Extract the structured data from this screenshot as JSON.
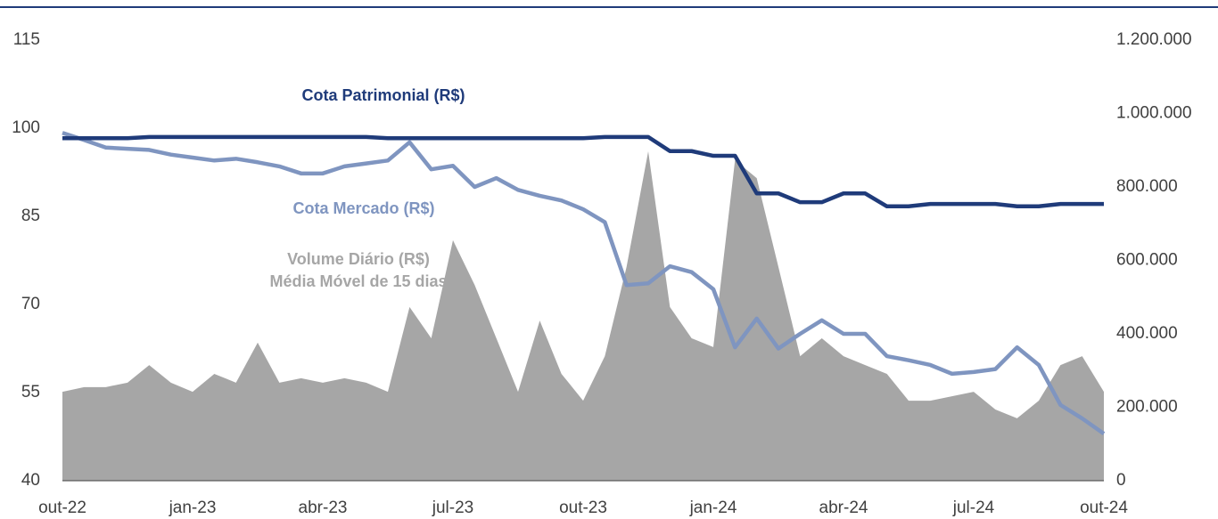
{
  "chart_data": {
    "type": "line",
    "categories": [
      "out-22",
      null,
      null,
      null,
      null,
      null,
      "jan-23",
      null,
      null,
      null,
      null,
      null,
      "abr-23",
      null,
      null,
      null,
      null,
      null,
      "jul-23",
      null,
      null,
      null,
      null,
      null,
      "out-23",
      null,
      null,
      null,
      null,
      null,
      "jan-24",
      null,
      null,
      null,
      null,
      null,
      "abr-24",
      null,
      null,
      null,
      null,
      null,
      "jul-24",
      null,
      null,
      null,
      null,
      null,
      "out-24"
    ],
    "series": [
      {
        "name": "Volume Diário (R$)",
        "type": "area",
        "axis": "y2",
        "color": "#a6a6a6",
        "values": [
          242000,
          255000,
          255000,
          267000,
          315000,
          267000,
          242000,
          291000,
          267000,
          376000,
          267000,
          279000,
          267000,
          279000,
          267000,
          242000,
          473000,
          388000,
          655000,
          533000,
          388000,
          242000,
          436000,
          291000,
          218000,
          339000,
          582000,
          897000,
          473000,
          388000,
          364000,
          873000,
          824000,
          582000,
          339000,
          388000,
          339000,
          315000,
          291000,
          218000,
          218000,
          230000,
          242000,
          194000,
          170000,
          218000,
          315000,
          339000,
          242000
        ]
      },
      {
        "name": "Cota Mercado (R$)",
        "type": "line",
        "color": "#7f95c0",
        "values": [
          99.2,
          98,
          96.7,
          96.5,
          96.3,
          95.5,
          95,
          94.5,
          94.8,
          94.2,
          93.5,
          92.3,
          92.3,
          93.5,
          94,
          94.5,
          97.6,
          93,
          93.6,
          90,
          91.5,
          89.5,
          88.5,
          87.7,
          86.2,
          84,
          73.3,
          73.6,
          76.5,
          75.5,
          72.6,
          62.7,
          67.6,
          62.5,
          65,
          67.3,
          65,
          65,
          61.2,
          60.5,
          59.7,
          58.2,
          58.5,
          59,
          62.7,
          59.7,
          52.9,
          50.6,
          48
        ]
      },
      {
        "name": "Cota Patrimonial (R$)",
        "type": "line",
        "color": "#1f3b7a",
        "values": [
          98.3,
          98.3,
          98.3,
          98.3,
          98.5,
          98.5,
          98.5,
          98.5,
          98.5,
          98.5,
          98.5,
          98.5,
          98.5,
          98.5,
          98.5,
          98.3,
          98.3,
          98.3,
          98.3,
          98.3,
          98.3,
          98.3,
          98.3,
          98.3,
          98.3,
          98.5,
          98.5,
          98.5,
          96.1,
          96.1,
          95.3,
          95.3,
          88.9,
          88.9,
          87.4,
          87.4,
          88.9,
          88.9,
          86.7,
          86.7,
          87.1,
          87.1,
          87.1,
          87.1,
          86.7,
          86.7,
          87.1,
          87.1,
          87.1
        ]
      }
    ],
    "annotations": [
      "Média Móvel de 15 dias"
    ],
    "ylim": [
      40,
      115
    ],
    "yticks": [
      40,
      55,
      70,
      85,
      100,
      115
    ],
    "y2lim": [
      0,
      1200000
    ],
    "y2ticks": [
      0,
      {
        "value": 200000,
        "label": "200.000"
      },
      {
        "value": 400000,
        "label": "400.000"
      },
      {
        "value": 600000,
        "label": "600.000"
      },
      {
        "value": 800000,
        "label": "800.000"
      },
      {
        "value": 1000000,
        "label": "1.000.000"
      },
      {
        "value": 1200000,
        "label": "1.200.000"
      }
    ],
    "grid": false
  }
}
